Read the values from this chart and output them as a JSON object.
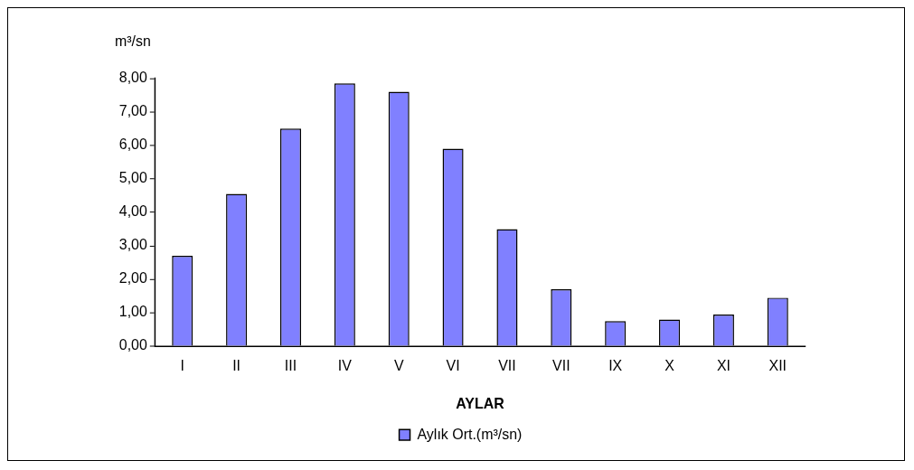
{
  "chart_data": {
    "type": "bar",
    "xlabel": "AYLAR",
    "ylabel": "m³/sn",
    "categories": [
      "I",
      "II",
      "III",
      "IV",
      "V",
      "VI",
      "VII",
      "VII",
      "IX",
      "X",
      "XI",
      "XII"
    ],
    "series": [
      {
        "name": "Aylık Ort.(m³/sn)",
        "color": "#8080ff",
        "values": [
          2.7,
          4.55,
          6.5,
          7.85,
          7.6,
          5.9,
          3.5,
          1.7,
          0.75,
          0.8,
          0.95,
          1.45
        ]
      }
    ],
    "ylim": [
      0,
      8
    ],
    "yticks": [
      {
        "value": 0,
        "label": "0,00"
      },
      {
        "value": 1,
        "label": "1,00"
      },
      {
        "value": 2,
        "label": "2,00"
      },
      {
        "value": 3,
        "label": "3,00"
      },
      {
        "value": 4,
        "label": "4,00"
      },
      {
        "value": 5,
        "label": "5,00"
      },
      {
        "value": 6,
        "label": "6,00"
      },
      {
        "value": 7,
        "label": "7,00"
      },
      {
        "value": 8,
        "label": "8,00"
      }
    ],
    "grid": false,
    "legend": "bottom"
  }
}
